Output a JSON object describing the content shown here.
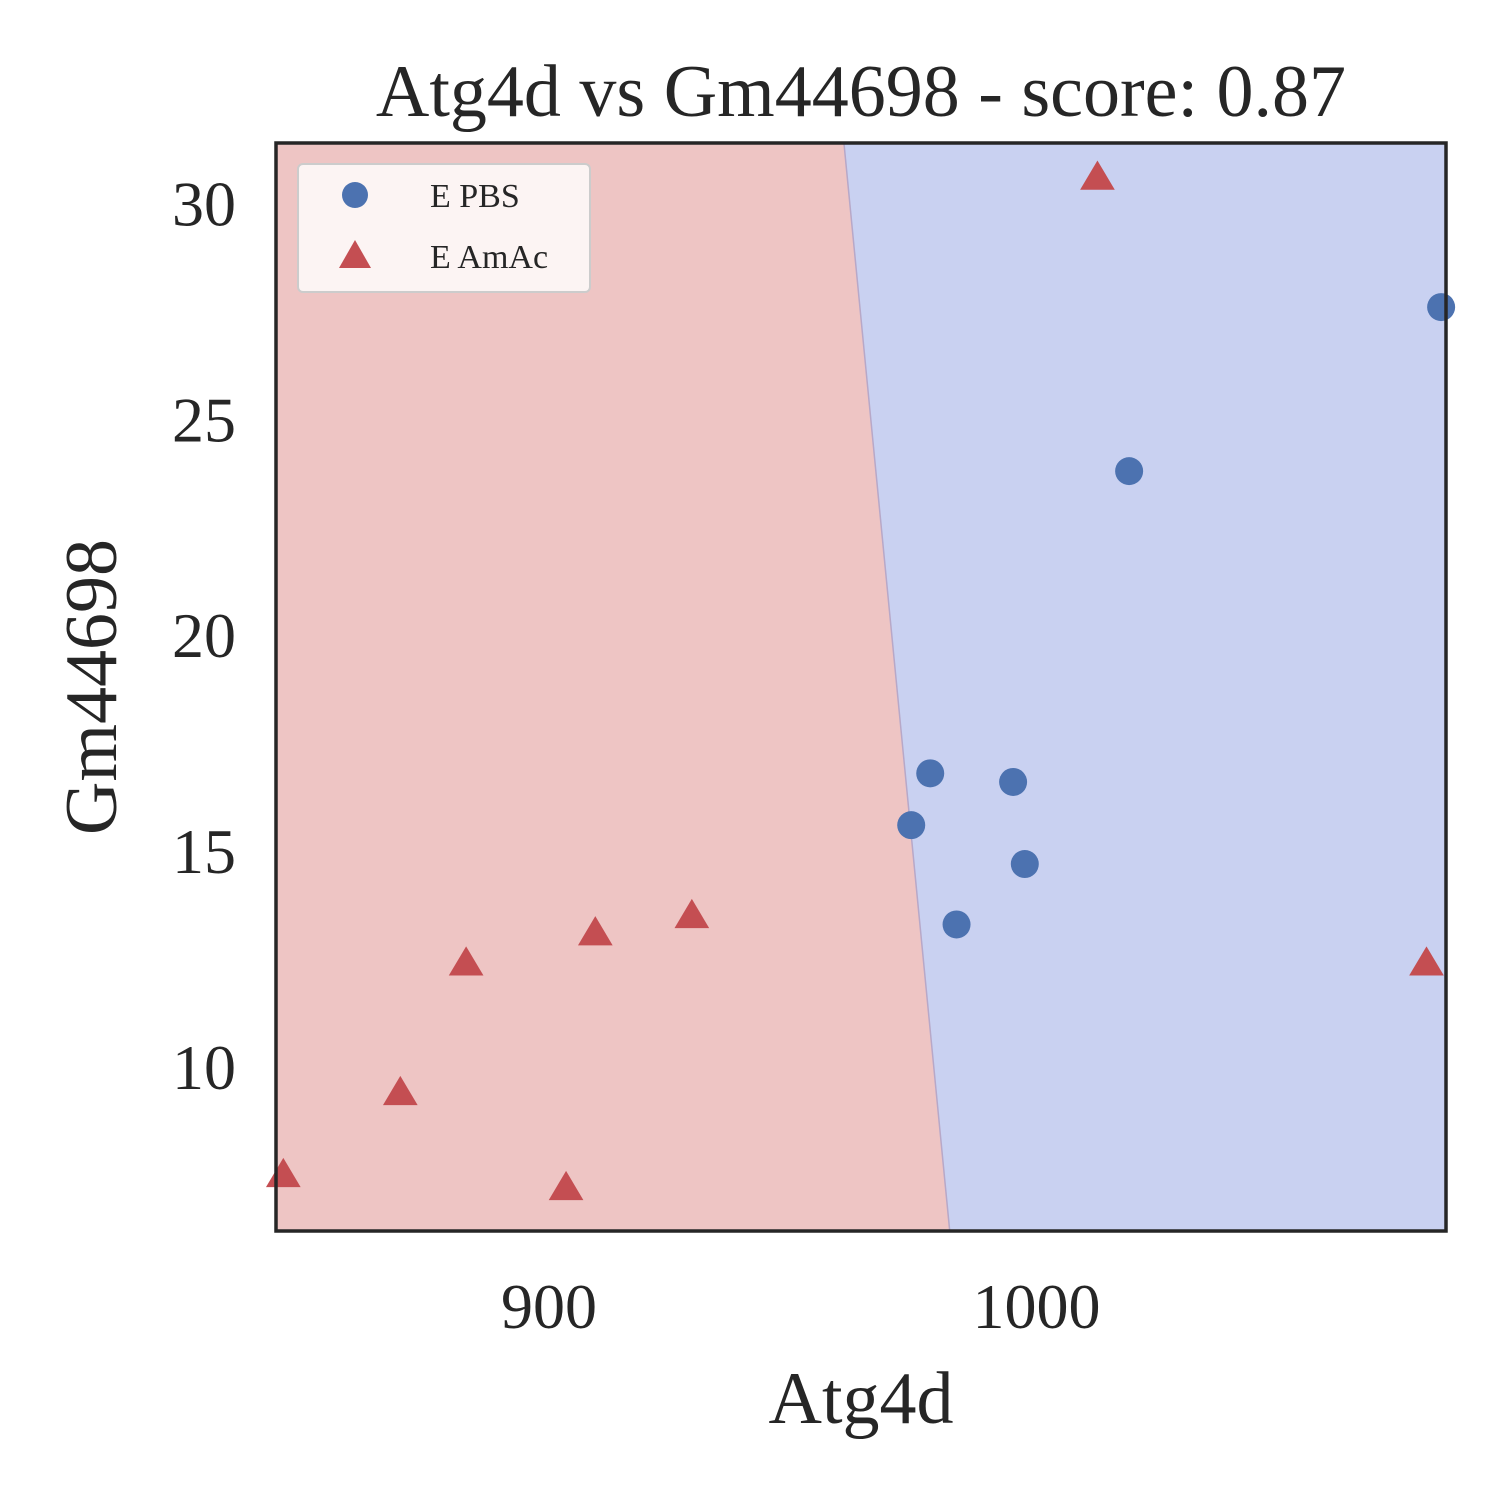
{
  "chart_data": {
    "type": "scatter",
    "title": "Atg4d vs Gm44698 - score: 0.87",
    "xlabel": "Atg4d",
    "ylabel": "Gm44698",
    "xlim": [
      844,
      1084
    ],
    "ylim": [
      6.2,
      31.4
    ],
    "xticks": [
      900,
      1000
    ],
    "yticks": [
      10,
      15,
      20,
      25,
      30
    ],
    "grid": false,
    "legend_position": "top-left",
    "decision_regions": {
      "boundary": [
        {
          "x": 960.5,
          "y": 31.4
        },
        {
          "x": 982.2,
          "y": 6.2
        }
      ],
      "left_class": "E AmAc",
      "right_class": "E PBS",
      "left_color": "#eec5c4",
      "right_color": "#c9d1f1",
      "boundary_color": "#b7a8c8"
    },
    "series": [
      {
        "name": "E PBS",
        "marker": "circle",
        "color": "#4c72b0",
        "points": [
          {
            "x": 974.3,
            "y": 15.6
          },
          {
            "x": 978.2,
            "y": 16.8
          },
          {
            "x": 983.6,
            "y": 13.3
          },
          {
            "x": 995.2,
            "y": 16.6
          },
          {
            "x": 997.6,
            "y": 14.7
          },
          {
            "x": 1019.0,
            "y": 23.8
          },
          {
            "x": 1083.0,
            "y": 27.6
          }
        ]
      },
      {
        "name": "E AmAc",
        "marker": "triangle",
        "color": "#c44e52",
        "points": [
          {
            "x": 845.5,
            "y": 7.5
          },
          {
            "x": 869.5,
            "y": 9.4
          },
          {
            "x": 883.0,
            "y": 12.4
          },
          {
            "x": 903.5,
            "y": 7.2
          },
          {
            "x": 909.5,
            "y": 13.1
          },
          {
            "x": 929.3,
            "y": 13.5
          },
          {
            "x": 1012.5,
            "y": 30.6
          },
          {
            "x": 1080.0,
            "y": 12.4
          }
        ]
      }
    ]
  }
}
